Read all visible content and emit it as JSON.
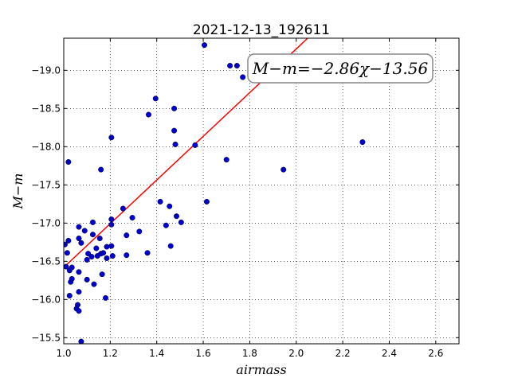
{
  "chart_data": {
    "type": "scatter",
    "title": "2021-12-13_192611",
    "xlabel": "airmass",
    "ylabel": "M−m",
    "xlim": [
      1.0,
      2.7
    ],
    "ylim": [
      -19.42,
      -15.42
    ],
    "y_inverted": true,
    "grid": true,
    "grid_style": "dotted",
    "xticks": [
      1.0,
      1.2,
      1.4,
      1.6,
      1.8,
      2.0,
      2.2,
      2.4,
      2.6
    ],
    "xtick_labels": [
      "1.0",
      "1.2",
      "1.4",
      "1.6",
      "1.8",
      "2.0",
      "2.2",
      "2.4",
      "2.6"
    ],
    "yticks": [
      -15.5,
      -16.0,
      -16.5,
      -17.0,
      -17.5,
      -18.0,
      -18.5,
      -19.0
    ],
    "ytick_labels": [
      "−15.5",
      "−16.0",
      "−16.5",
      "−17.0",
      "−17.5",
      "−18.0",
      "−18.5",
      "−19.0"
    ],
    "annotation": "M−m=−2.86χ−13.56",
    "annotation_placement": "top-right",
    "fit_line": {
      "slope": -2.86,
      "intercept": -13.56,
      "color": "#ff0000"
    },
    "point_color": "#0000cc",
    "points": [
      {
        "x": 1.075,
        "y": -15.45
      },
      {
        "x": 1.055,
        "y": -15.88
      },
      {
        "x": 1.065,
        "y": -15.85
      },
      {
        "x": 1.06,
        "y": -15.93
      },
      {
        "x": 1.025,
        "y": -16.05
      },
      {
        "x": 1.065,
        "y": -16.1
      },
      {
        "x": 1.18,
        "y": -16.02
      },
      {
        "x": 1.13,
        "y": -16.2
      },
      {
        "x": 1.03,
        "y": -16.23
      },
      {
        "x": 1.035,
        "y": -16.27
      },
      {
        "x": 1.1,
        "y": -16.26
      },
      {
        "x": 1.165,
        "y": -16.33
      },
      {
        "x": 1.065,
        "y": -16.36
      },
      {
        "x": 1.025,
        "y": -16.38
      },
      {
        "x": 1.035,
        "y": -16.42
      },
      {
        "x": 1.01,
        "y": -16.43
      },
      {
        "x": 1.1,
        "y": -16.52
      },
      {
        "x": 1.185,
        "y": -16.54
      },
      {
        "x": 1.12,
        "y": -16.56
      },
      {
        "x": 1.21,
        "y": -16.57
      },
      {
        "x": 1.145,
        "y": -16.57
      },
      {
        "x": 1.27,
        "y": -16.58
      },
      {
        "x": 1.105,
        "y": -16.6
      },
      {
        "x": 1.16,
        "y": -16.6
      },
      {
        "x": 1.17,
        "y": -16.61
      },
      {
        "x": 1.015,
        "y": -16.61
      },
      {
        "x": 1.36,
        "y": -16.61
      },
      {
        "x": 1.14,
        "y": -16.67
      },
      {
        "x": 1.185,
        "y": -16.69
      },
      {
        "x": 1.205,
        "y": -16.7
      },
      {
        "x": 1.46,
        "y": -16.7
      },
      {
        "x": 1.005,
        "y": -16.72
      },
      {
        "x": 1.075,
        "y": -16.74
      },
      {
        "x": 1.02,
        "y": -16.77
      },
      {
        "x": 1.065,
        "y": -16.8
      },
      {
        "x": 1.155,
        "y": -16.8
      },
      {
        "x": 1.27,
        "y": -16.84
      },
      {
        "x": 1.125,
        "y": -16.85
      },
      {
        "x": 1.325,
        "y": -16.89
      },
      {
        "x": 1.09,
        "y": -16.9
      },
      {
        "x": 1.065,
        "y": -16.95
      },
      {
        "x": 1.44,
        "y": -16.97
      },
      {
        "x": 1.205,
        "y": -16.98
      },
      {
        "x": 1.125,
        "y": -17.01
      },
      {
        "x": 1.505,
        "y": -17.01
      },
      {
        "x": 1.205,
        "y": -17.05
      },
      {
        "x": 1.295,
        "y": -17.07
      },
      {
        "x": 1.485,
        "y": -17.09
      },
      {
        "x": 1.255,
        "y": -17.19
      },
      {
        "x": 1.455,
        "y": -17.22
      },
      {
        "x": 1.415,
        "y": -17.28
      },
      {
        "x": 1.615,
        "y": -17.28
      },
      {
        "x": 1.16,
        "y": -17.7
      },
      {
        "x": 1.945,
        "y": -17.7
      },
      {
        "x": 1.02,
        "y": -17.8
      },
      {
        "x": 1.7,
        "y": -17.83
      },
      {
        "x": 1.565,
        "y": -18.02
      },
      {
        "x": 1.48,
        "y": -18.03
      },
      {
        "x": 2.285,
        "y": -18.06
      },
      {
        "x": 1.205,
        "y": -18.12
      },
      {
        "x": 1.475,
        "y": -18.21
      },
      {
        "x": 1.365,
        "y": -18.42
      },
      {
        "x": 1.475,
        "y": -18.5
      },
      {
        "x": 1.395,
        "y": -18.63
      },
      {
        "x": 1.77,
        "y": -18.91
      },
      {
        "x": 1.715,
        "y": -19.06
      },
      {
        "x": 1.745,
        "y": -19.06
      },
      {
        "x": 1.605,
        "y": -19.33
      }
    ]
  }
}
